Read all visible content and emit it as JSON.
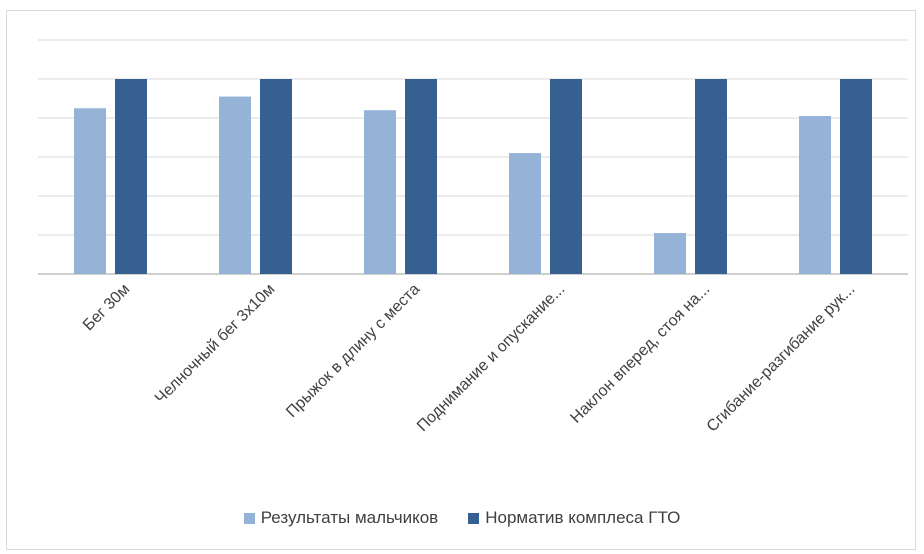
{
  "chart_data": {
    "type": "bar",
    "categories": [
      "Бег 30м",
      "Челночный бег 3х10м",
      "Прыжок в длину с места",
      "Поднимание и опускание...",
      "Наклон вперед, стоя на...",
      "Сгибание-разгибание рук..."
    ],
    "series": [
      {
        "name": "Результаты мальчиков",
        "color": "#95b3d7",
        "values": [
          85,
          91,
          84,
          62,
          21,
          81
        ]
      },
      {
        "name": "Норматив комплеса ГТО",
        "color": "#366092",
        "values": [
          100,
          100,
          100,
          100,
          100,
          100
        ]
      }
    ],
    "ylim": [
      0,
      120
    ],
    "grid": true,
    "legend_position": "bottom"
  }
}
